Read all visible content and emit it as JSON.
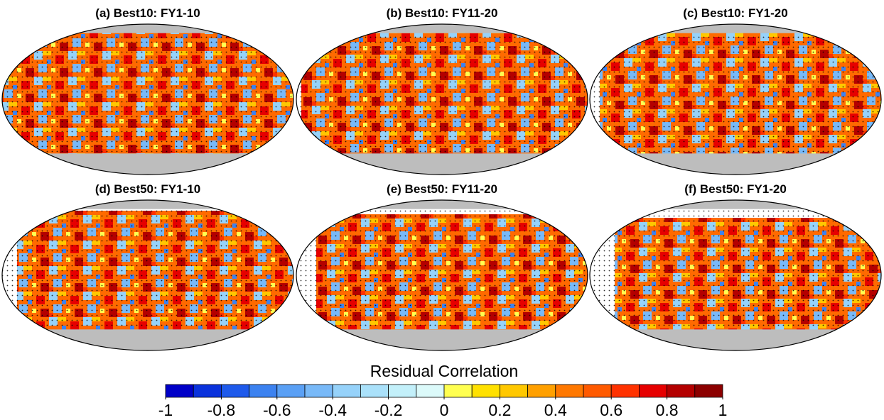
{
  "chart_data": {
    "type": "map",
    "panels": [
      {
        "title": "(a) Best10: FY1-10"
      },
      {
        "title": "(b) Best10: FY11-20"
      },
      {
        "title": "(c) Best10: FY1-20"
      },
      {
        "title": "(d) Best50: FY1-10"
      },
      {
        "title": "(e) Best50: FY11-20"
      },
      {
        "title": "(f) Best50: FY1-20"
      }
    ],
    "colorbar": {
      "title": "Residual Correlation",
      "lim": [
        -1,
        1
      ],
      "ticks": [
        -1,
        -0.8,
        -0.6,
        -0.4,
        -0.2,
        0,
        0.2,
        0.4,
        0.6,
        0.8,
        1
      ],
      "colors": [
        "#0000c8",
        "#0a32dc",
        "#1e5aeb",
        "#3c82f0",
        "#5aa0f5",
        "#78b9f8",
        "#96d2fa",
        "#aae1fa",
        "#c3f0fa",
        "#dcfafa",
        "#ffff50",
        "#ffe100",
        "#ffc800",
        "#ffa000",
        "#ff7800",
        "#ff5a00",
        "#ff3200",
        "#e60000",
        "#b40000",
        "#8c0000"
      ]
    }
  }
}
